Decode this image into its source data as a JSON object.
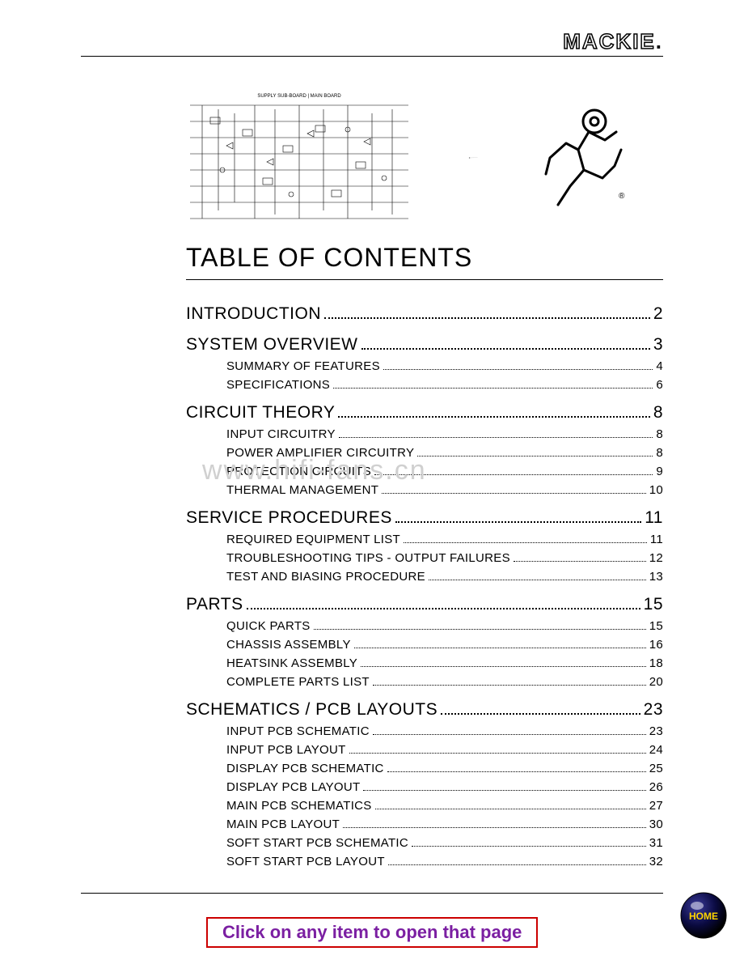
{
  "brand": "MACKIE",
  "toc_title": "TABLE OF CONTENTS",
  "watermark": "www.hifi-fans.cn",
  "hint": "Click on any item to open that page",
  "home_label": "HOME",
  "sections": [
    {
      "label": "INTRODUCTION",
      "page": "2",
      "items": []
    },
    {
      "label": "SYSTEM OVERVIEW",
      "page": "3",
      "items": [
        {
          "label": "SUMMARY OF FEATURES",
          "page": "4"
        },
        {
          "label": "SPECIFICATIONS",
          "page": "6"
        }
      ]
    },
    {
      "label": "CIRCUIT THEORY",
      "page": "8",
      "items": [
        {
          "label": "INPUT CIRCUITRY",
          "page": "8"
        },
        {
          "label": "POWER AMPLIFIER CIRCUITRY",
          "page": "8"
        },
        {
          "label": "PROTECTION CIRCUITS",
          "page": "9"
        },
        {
          "label": "THERMAL MANAGEMENT",
          "page": "10"
        }
      ]
    },
    {
      "label": "SERVICE PROCEDURES",
      "page": "11",
      "items": [
        {
          "label": "REQUIRED EQUIPMENT LIST",
          "page": "11"
        },
        {
          "label": "TROUBLESHOOTING TIPS - OUTPUT FAILURES",
          "page": "12"
        },
        {
          "label": "TEST AND BIASING PROCEDURE",
          "page": "13"
        }
      ]
    },
    {
      "label": "PARTS",
      "page": "15",
      "items": [
        {
          "label": "QUICK PARTS",
          "page": "15"
        },
        {
          "label": "CHASSIS ASSEMBLY",
          "page": "16"
        },
        {
          "label": "HEATSINK ASSEMBLY",
          "page": "18"
        },
        {
          "label": "COMPLETE PARTS LIST",
          "page": "20"
        }
      ]
    },
    {
      "label": "SCHEMATICS / PCB LAYOUTS",
      "page": "23",
      "items": [
        {
          "label": "INPUT PCB SCHEMATIC",
          "page": "23"
        },
        {
          "label": "INPUT PCB LAYOUT",
          "page": "24"
        },
        {
          "label": "DISPLAY PCB SCHEMATIC",
          "page": "25"
        },
        {
          "label": "DISPLAY PCB LAYOUT",
          "page": "26"
        },
        {
          "label": "MAIN PCB SCHEMATICS",
          "page": "27"
        },
        {
          "label": "MAIN PCB LAYOUT",
          "page": "30"
        },
        {
          "label": "SOFT START PCB SCHEMATIC",
          "page": "31"
        },
        {
          "label": "SOFT START PCB LAYOUT",
          "page": "32"
        }
      ]
    }
  ],
  "colors": {
    "hint_border": "#cc0000",
    "hint_text": "#7b1fa2",
    "home_fill": "#0a0a40",
    "home_text": "#ffd400"
  }
}
